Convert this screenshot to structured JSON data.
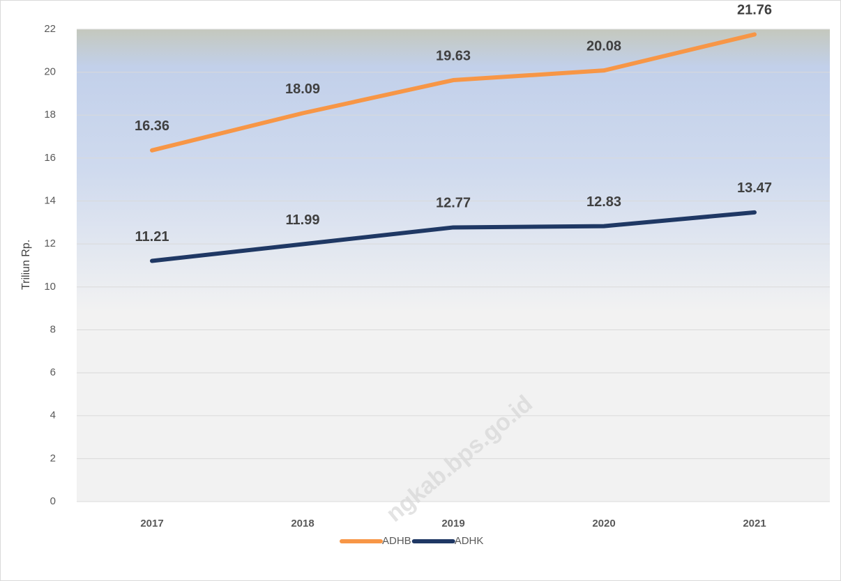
{
  "chart_data": {
    "type": "line",
    "y_label": "Triliun Rp.",
    "categories": [
      "2017",
      "2018",
      "2019",
      "2020",
      "2021"
    ],
    "series": [
      {
        "name": "ADHB",
        "color": "#f79646",
        "values": [
          16.36,
          18.09,
          19.63,
          20.08,
          21.76
        ]
      },
      {
        "name": "ADHK",
        "color": "#1f3864",
        "values": [
          11.21,
          11.99,
          12.77,
          12.83,
          13.47
        ]
      }
    ],
    "ylim": [
      0,
      22
    ],
    "yticks": [
      0,
      2,
      4,
      6,
      8,
      10,
      12,
      14,
      16,
      18,
      20,
      22
    ],
    "grid": true,
    "legend": "bottom",
    "watermark": "ngkab.bps.go.id"
  }
}
